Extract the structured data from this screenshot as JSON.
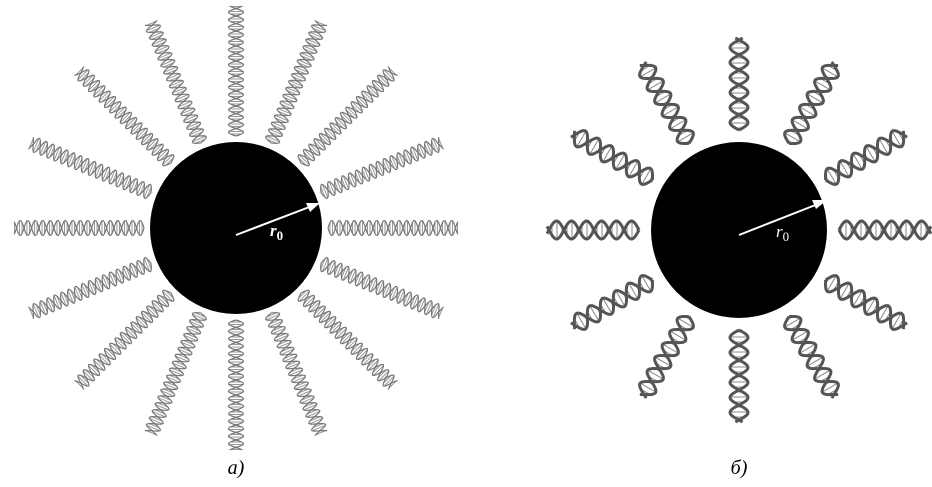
{
  "panels": [
    {
      "caption": "а)",
      "radius_symbol": "r",
      "radius_subscript": "0"
    },
    {
      "caption": "б)",
      "radius_symbol": "r",
      "radius_subscript": "0"
    }
  ]
}
